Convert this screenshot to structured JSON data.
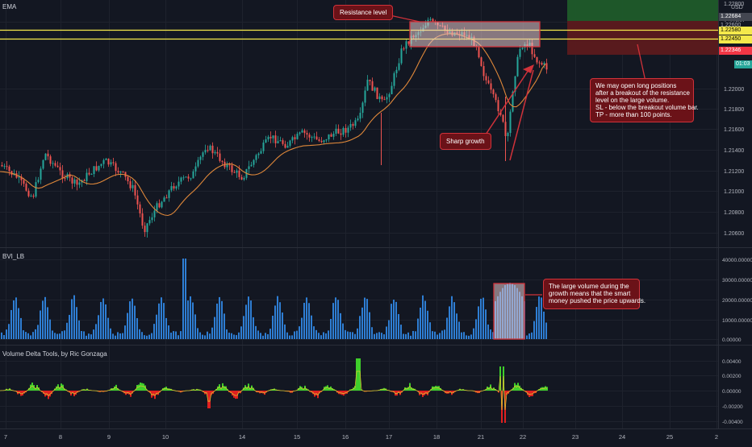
{
  "indicators": {
    "ema_label": "EMA",
    "bvi_label": "BVI_LB",
    "vdt_label": "Volume Delta Tools, by Ric Gonzaga"
  },
  "currency": "USD",
  "price_axis": {
    "ticks": [
      "1.22400",
      "1.22000",
      "1.21800",
      "1.21600",
      "1.21400",
      "1.21200",
      "1.21000",
      "1.20800",
      "1.20600"
    ],
    "top_partial": "1.22800"
  },
  "price_labels": [
    {
      "text": "1.22684",
      "bg": "#434651",
      "fg": "#ffffff"
    },
    {
      "text": "1.22600",
      "bg": "#131722",
      "fg": "#b2b5be"
    },
    {
      "text": "1.22580",
      "bg": "#f5e94b",
      "fg": "#000000"
    },
    {
      "text": "1.22450",
      "bg": "#f5e94b",
      "fg": "#000000"
    },
    {
      "text": "1.22346",
      "bg": "#f23645",
      "fg": "#ffffff"
    },
    {
      "text": "01:03",
      "bg": "#26a69a",
      "fg": "#ffffff"
    }
  ],
  "volume_axis": {
    "ticks": [
      "40000.00000",
      "30000.00000",
      "20000.00000",
      "10000.00000",
      "0.00000"
    ]
  },
  "delta_axis": {
    "ticks": [
      "0.00400",
      "0.00200",
      "0.00000",
      "-0.00200",
      "-0.00400"
    ]
  },
  "time_axis": {
    "ticks": [
      "7",
      "8",
      "9",
      "10",
      "14",
      "15",
      "16",
      "17",
      "18",
      "21",
      "22",
      "23",
      "24",
      "25",
      "2"
    ]
  },
  "annotations": {
    "resistance": "Resistance level",
    "sharp_growth": "Sharp growth",
    "trade_plan": [
      "We may open long positions",
      "after a breakout of the resistance",
      "level on the large volume.",
      "SL - below the breakout volume bar.",
      "TP - more than 100 points."
    ],
    "volume_note": [
      "The large volume during the",
      "growth means that the smart",
      "money pushed the price upwards."
    ]
  },
  "colors": {
    "background": "#131722",
    "bull": "#26a69a",
    "bear": "#ef5350",
    "ema": "#e0883a",
    "resistance_line": "#f5e94b",
    "volume_bar": "#2e7ed4",
    "delta_pos": "#3fcf2b",
    "delta_neg": "#e02020",
    "delta_line": "#d6c230",
    "callout_bg": "#6b1218",
    "callout_border": "#d0323a"
  }
}
